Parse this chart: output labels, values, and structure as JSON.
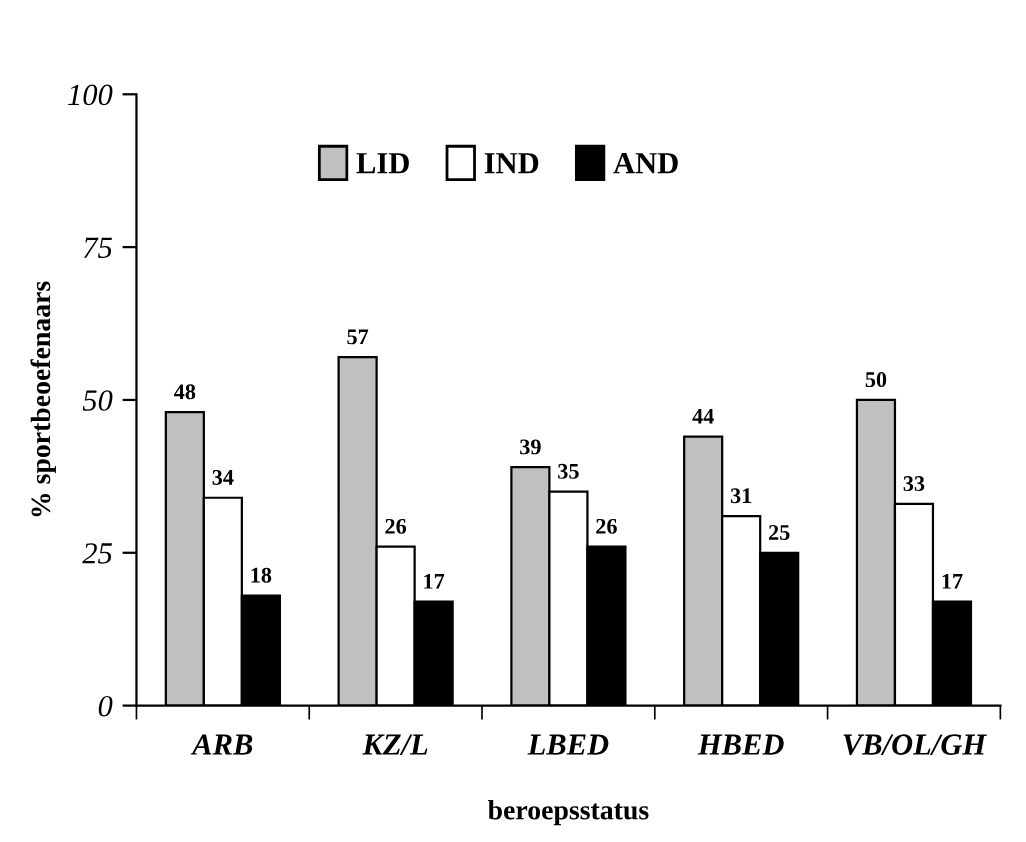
{
  "chart_data": {
    "type": "bar",
    "xlabel": "beroepsstatus",
    "ylabel": "% sportbeoefenaars",
    "categories": [
      "ARB",
      "KZ/L",
      "LBED",
      "HBED",
      "VB/OL/GH"
    ],
    "series": [
      {
        "name": "LID",
        "color": "#c0c0c0",
        "values": [
          48,
          57,
          39,
          44,
          50
        ]
      },
      {
        "name": "IND",
        "color": "#ffffff",
        "values": [
          34,
          26,
          35,
          31,
          33
        ]
      },
      {
        "name": "AND",
        "color": "#000000",
        "values": [
          18,
          17,
          26,
          25,
          17
        ]
      }
    ],
    "ylim": [
      0,
      100
    ],
    "yticks": [
      0,
      25,
      50,
      75,
      100
    ],
    "grid": false,
    "legend": "top",
    "data_labels": true
  }
}
